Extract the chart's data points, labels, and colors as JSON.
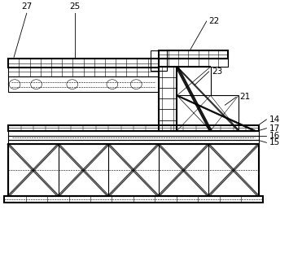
{
  "line_color": "#000000",
  "bg_color": "#ffffff",
  "lw": 0.8,
  "lw_thick": 1.5,
  "lw_thin": 0.4
}
